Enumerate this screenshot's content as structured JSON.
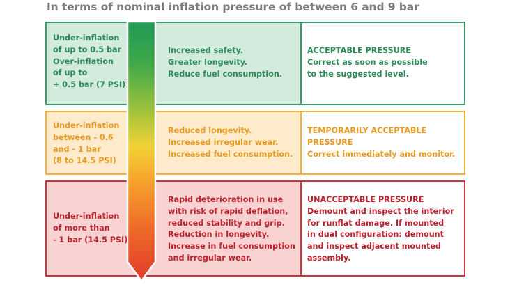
{
  "title": "In terms of nominal inflation pressure of between 6 and 9 bar",
  "colors": {
    "green": "#3a9a68",
    "green_fill": "#d2ebdd",
    "orange": "#f2b13a",
    "orange_fill": "#fdebcc",
    "red": "#c9343d",
    "red_fill": "#f8d3d1"
  },
  "rows": [
    {
      "condition": "Under-inflation\nof up to 0.5 bar\nOver-inflation\nof up to\n+ 0.5 bar (7 PSI)",
      "effects": "Increased safety.\nGreater longevity.\nReduce fuel consumption.",
      "assessment": "ACCEPTABLE PRESSURE\nCorrect as soon as possible\nto the suggested level."
    },
    {
      "condition": "Under-inflation\nbetween - 0.6\nand - 1 bar\n(8 to 14.5 PSI)",
      "effects": "Reduced longevity.\nIncreased irregular wear.\nIncreased fuel consumption.",
      "assessment": "TEMPORARILY ACCEPTABLE\nPRESSURE\nCorrect immediately and monitor."
    },
    {
      "condition": "Under-inflation\nof more than\n- 1 bar (14.5 PSI)",
      "effects": "Rapid deterioration in use\nwith risk of rapid deflation,\nreduced stability and grip.\nReduction in longevity.\nIncrease in fuel consumption\nand irregular wear.",
      "assessment": "UNACCEPTABLE PRESSURE\nDemount and inspect the interior\nfor runflat damage. If mounted\nin dual configuration: demount\nand inspect adjacent mounted\nassembly."
    }
  ]
}
